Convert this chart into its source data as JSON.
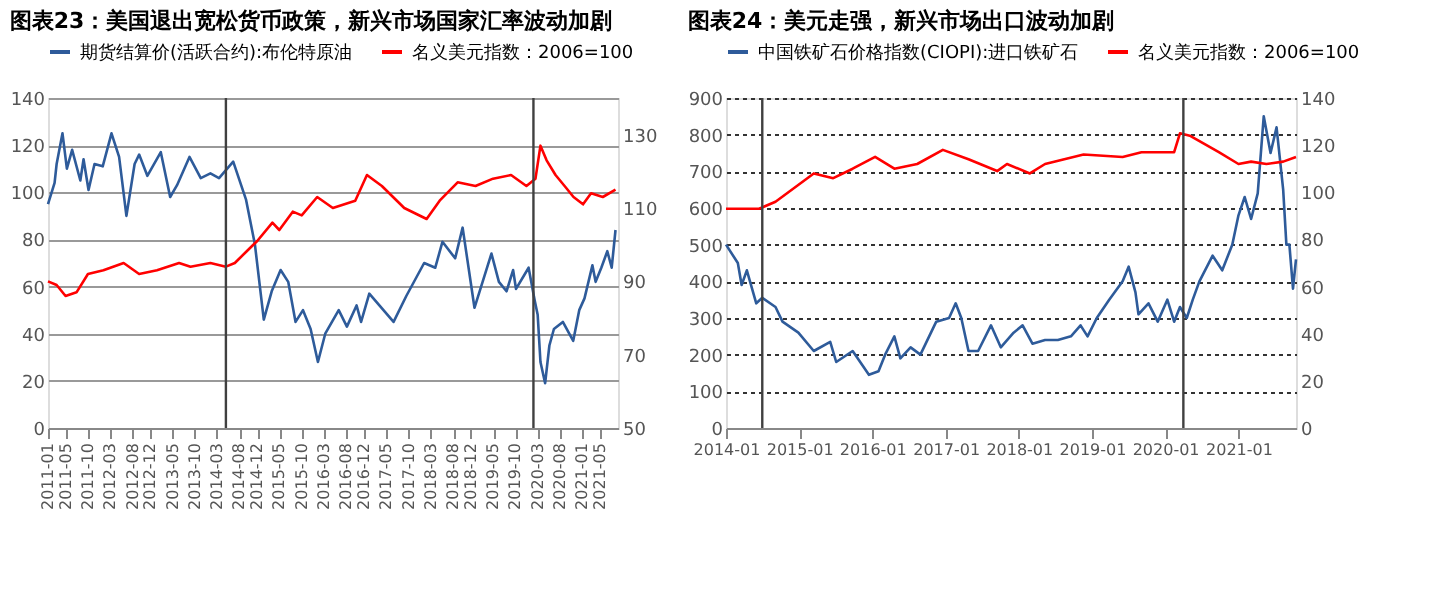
{
  "chart_data": [
    {
      "type": "line",
      "title": "图表23：美国退出宽松货币政策，新兴市场国家汇率波动加剧",
      "xlim": [
        "2011-01",
        "2021-09"
      ],
      "xticks": [
        "2011-01",
        "2011-05",
        "2011-10",
        "2012-03",
        "2012-08",
        "2012-12",
        "2013-05",
        "2013-10",
        "2014-03",
        "2014-08",
        "2014-12",
        "2015-05",
        "2015-10",
        "2016-03",
        "2016-08",
        "2016-12",
        "2017-05",
        "2017-10",
        "2018-03",
        "2018-08",
        "2018-12",
        "2019-05",
        "2019-10",
        "2020-03",
        "2020-08",
        "2021-01",
        "2021-05"
      ],
      "ylim": [
        0,
        140
      ],
      "yticks": [
        0,
        20,
        40,
        60,
        80,
        100,
        120,
        140
      ],
      "y2lim": [
        50,
        140
      ],
      "y2ticks": [
        50,
        70,
        90,
        110,
        130
      ],
      "grid": "y",
      "legend": "top",
      "ref_lines": [
        {
          "axis": "x",
          "value": "2014-05",
          "color": "#404040"
        },
        {
          "axis": "x",
          "value": "2020-02",
          "color": "#404040"
        }
      ],
      "series": [
        {
          "name": "期货结算价(活跃合约):布伦特原油",
          "color": "#2e5b9a",
          "x": [
            "2011-01-01",
            "2011-02-15",
            "2011-03-01",
            "2011-04-10",
            "2011-05-10",
            "2011-06-15",
            "2011-08-10",
            "2011-09-01",
            "2011-10-05",
            "2011-11-15",
            "2012-01-10",
            "2012-03-10",
            "2012-05-01",
            "2012-06-20",
            "2012-08-15",
            "2012-09-15",
            "2012-11-10",
            "2013-02-10",
            "2013-04-15",
            "2013-06-01",
            "2013-08-25",
            "2013-11-10",
            "2014-01-15",
            "2014-03-15",
            "2014-06-20",
            "2014-09-15",
            "2014-11-15",
            "2015-01-15",
            "2015-03-10",
            "2015-05-10",
            "2015-07-01",
            "2015-08-20",
            "2015-10-10",
            "2015-12-01",
            "2016-01-20",
            "2016-03-10",
            "2016-06-10",
            "2016-08-05",
            "2016-10-10",
            "2016-11-10",
            "2017-01-05",
            "2017-06-20",
            "2017-09-15",
            "2018-01-15",
            "2018-04-01",
            "2018-05-20",
            "2018-08-15",
            "2018-10-05",
            "2018-12-25",
            "2019-04-20",
            "2019-06-10",
            "2019-08-01",
            "2019-09-15",
            "2019-10-05",
            "2019-12-30",
            "2020-02-10",
            "2020-03-01",
            "2020-03-20",
            "2020-04-21",
            "2020-05-20",
            "2020-06-20",
            "2020-08-20",
            "2020-10-30",
            "2020-12-10",
            "2021-01-15",
            "2021-03-10",
            "2021-04-01",
            "2021-05-10",
            "2021-06-20",
            "2021-07-20",
            "2021-08-15"
          ],
          "values": [
            95,
            104,
            112,
            125,
            110,
            118,
            105,
            114,
            101,
            112,
            111,
            125,
            115,
            90,
            112,
            116,
            107,
            117,
            98,
            103,
            115,
            106,
            108,
            106,
            113,
            97,
            78,
            46,
            58,
            67,
            62,
            45,
            50,
            42,
            28,
            40,
            50,
            43,
            52,
            45,
            57,
            45,
            56,
            70,
            68,
            79,
            72,
            85,
            51,
            74,
            62,
            58,
            67,
            59,
            68,
            54,
            48,
            28,
            19,
            35,
            42,
            45,
            37,
            50,
            55,
            69,
            62,
            68,
            75,
            68,
            84
          ]
        },
        {
          "name": "名义美元指数：2006=100",
          "color": "#ff0000",
          "axis": "y2",
          "x": [
            "2011-01-01",
            "2011-03-01",
            "2011-05-01",
            "2011-07-15",
            "2011-10-01",
            "2012-01-15",
            "2012-06-01",
            "2012-09-15",
            "2013-01-15",
            "2013-06-15",
            "2013-09-01",
            "2014-01-15",
            "2014-05-01",
            "2014-07-01",
            "2014-09-15",
            "2014-12-01",
            "2015-03-15",
            "2015-05-01",
            "2015-08-01",
            "2015-10-01",
            "2016-01-15",
            "2016-05-01",
            "2016-10-01",
            "2016-12-20",
            "2017-04-01",
            "2017-09-01",
            "2018-02-01",
            "2018-05-01",
            "2018-09-01",
            "2019-01-01",
            "2019-05-01",
            "2019-09-01",
            "2019-12-15",
            "2020-02-15",
            "2020-03-20",
            "2020-05-01",
            "2020-07-01",
            "2020-09-01",
            "2020-11-01",
            "2021-01-05",
            "2021-03-01",
            "2021-05-20",
            "2021-08-15"
          ],
          "values": [
            90,
            89,
            86,
            87,
            92,
            93,
            95,
            92,
            93,
            95,
            94,
            95,
            94,
            95,
            98,
            101,
            106,
            104,
            109,
            108,
            113,
            110,
            112,
            119,
            116,
            110,
            107,
            112,
            117,
            116,
            118,
            119,
            116,
            118,
            127,
            123,
            119,
            116,
            113,
            111,
            114,
            113,
            115
          ]
        }
      ]
    },
    {
      "type": "line",
      "title": "图表24：美元走强，新兴市场出口波动加剧",
      "xlim": [
        "2014-01",
        "2021-10-15"
      ],
      "xticks": [
        "2014-01",
        "2015-01",
        "2016-01",
        "2017-01",
        "2018-01",
        "2019-01",
        "2020-01",
        "2021-01"
      ],
      "ylim": [
        0,
        900
      ],
      "yticks": [
        0,
        100,
        200,
        300,
        400,
        500,
        600,
        700,
        800,
        900
      ],
      "y2lim": [
        0,
        140
      ],
      "y2ticks": [
        0,
        20,
        40,
        60,
        80,
        100,
        120,
        140
      ],
      "grid": "y",
      "legend": "top",
      "ref_lines": [
        {
          "axis": "x",
          "value": "2014-07",
          "color": "#404040"
        },
        {
          "axis": "x",
          "value": "2020-04",
          "color": "#404040"
        }
      ],
      "series": [
        {
          "name": "中国铁矿石价格指数(CIOPI):进口铁矿石",
          "color": "#2e5b9a",
          "x": [
            "2014-01-01",
            "2014-03-01",
            "2014-03-20",
            "2014-04-15",
            "2014-06-01",
            "2014-07-01",
            "2014-09-05",
            "2014-10-10",
            "2014-12-28",
            "2015-03-15",
            "2015-06-05",
            "2015-07-05",
            "2015-09-25",
            "2015-12-15",
            "2016-02-01",
            "2016-03-05",
            "2016-04-20",
            "2016-05-20",
            "2016-07-10",
            "2016-08-28",
            "2016-11-15",
            "2017-01-18",
            "2017-02-20",
            "2017-03-20",
            "2017-04-25",
            "2017-06-12",
            "2017-08-15",
            "2017-10-03",
            "2017-12-06",
            "2018-01-20",
            "2018-03-10",
            "2018-05-12",
            "2018-07-15",
            "2018-09-18",
            "2018-11-05",
            "2018-12-10",
            "2019-01-25",
            "2019-03-28",
            "2019-06-03",
            "2019-07-03",
            "2019-08-06",
            "2019-08-21",
            "2019-10-10",
            "2019-11-25",
            "2020-01-12",
            "2020-02-15",
            "2020-03-15",
            "2020-04-18",
            "2020-05-18",
            "2020-06-20",
            "2020-08-25",
            "2020-10-12",
            "2020-12-01",
            "2021-01-01",
            "2021-02-01",
            "2021-03-05",
            "2021-04-07",
            "2021-05-07",
            "2021-06-10",
            "2021-07-10",
            "2021-08-12",
            "2021-08-28",
            "2021-09-12",
            "2021-09-30",
            "2021-10-15"
          ],
          "values": [
            500,
            450,
            390,
            430,
            340,
            355,
            330,
            290,
            260,
            210,
            235,
            180,
            210,
            145,
            155,
            200,
            250,
            190,
            220,
            200,
            290,
            300,
            340,
            300,
            210,
            210,
            280,
            220,
            260,
            280,
            230,
            240,
            240,
            250,
            280,
            250,
            300,
            350,
            400,
            440,
            370,
            310,
            340,
            290,
            350,
            290,
            330,
            300,
            350,
            400,
            470,
            430,
            500,
            580,
            630,
            570,
            640,
            850,
            750,
            820,
            650,
            500,
            500,
            380,
            460
          ]
        },
        {
          "name": "名义美元指数：2006=100",
          "color": "#ff0000",
          "axis": "y2",
          "x": [
            "2014-01-01",
            "2014-06-15",
            "2014-09-05",
            "2015-03-15",
            "2015-06-20",
            "2015-09-25",
            "2016-01-15",
            "2016-04-20",
            "2016-08-12",
            "2016-12-18",
            "2017-04-25",
            "2017-09-15",
            "2017-11-03",
            "2018-02-25",
            "2018-05-12",
            "2018-11-20",
            "2019-06-03",
            "2019-09-05",
            "2020-02-15",
            "2020-03-15",
            "2020-05-03",
            "2020-09-25",
            "2021-01-01",
            "2021-03-05",
            "2021-05-20",
            "2021-08-12",
            "2021-10-15"
          ],
          "values": [
            93,
            93,
            96,
            108,
            106,
            110,
            115,
            110,
            112,
            118,
            114,
            109,
            112,
            108,
            112,
            116,
            115,
            117,
            117,
            125,
            124,
            117,
            112,
            113,
            112,
            113,
            115
          ]
        }
      ]
    }
  ]
}
